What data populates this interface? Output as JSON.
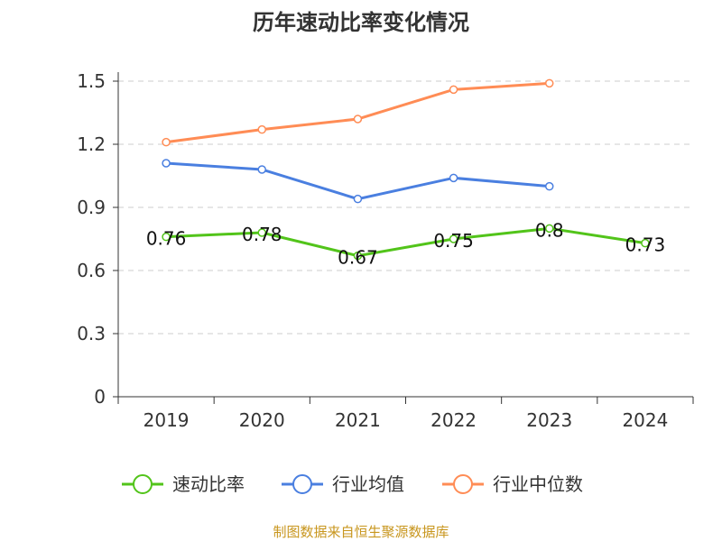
{
  "chart_data": {
    "type": "line",
    "title": "历年速动比率变化情况",
    "categories": [
      "2019",
      "2020",
      "2021",
      "2022",
      "2023",
      "2024"
    ],
    "ylim": [
      0,
      1.5
    ],
    "yticks": [
      "0",
      "0.3",
      "0.6",
      "0.9",
      "1.2",
      "1.5"
    ],
    "grid": true,
    "legend_position": "bottom",
    "series": [
      {
        "name": "速动比率",
        "color": "#52c41a",
        "values": [
          0.76,
          0.78,
          0.67,
          0.75,
          0.8,
          0.73
        ],
        "labels": [
          "0.76",
          "0.78",
          "0.67",
          "0.75",
          "0.8",
          "0.73"
        ]
      },
      {
        "name": "行业均值",
        "color": "#4a7fe0",
        "values": [
          1.11,
          1.08,
          0.94,
          1.04,
          1.0,
          null
        ]
      },
      {
        "name": "行业中位数",
        "color": "#ff8c55",
        "values": [
          1.21,
          1.27,
          1.32,
          1.46,
          1.49,
          null
        ]
      }
    ]
  },
  "source": "制图数据来自恒生聚源数据库"
}
